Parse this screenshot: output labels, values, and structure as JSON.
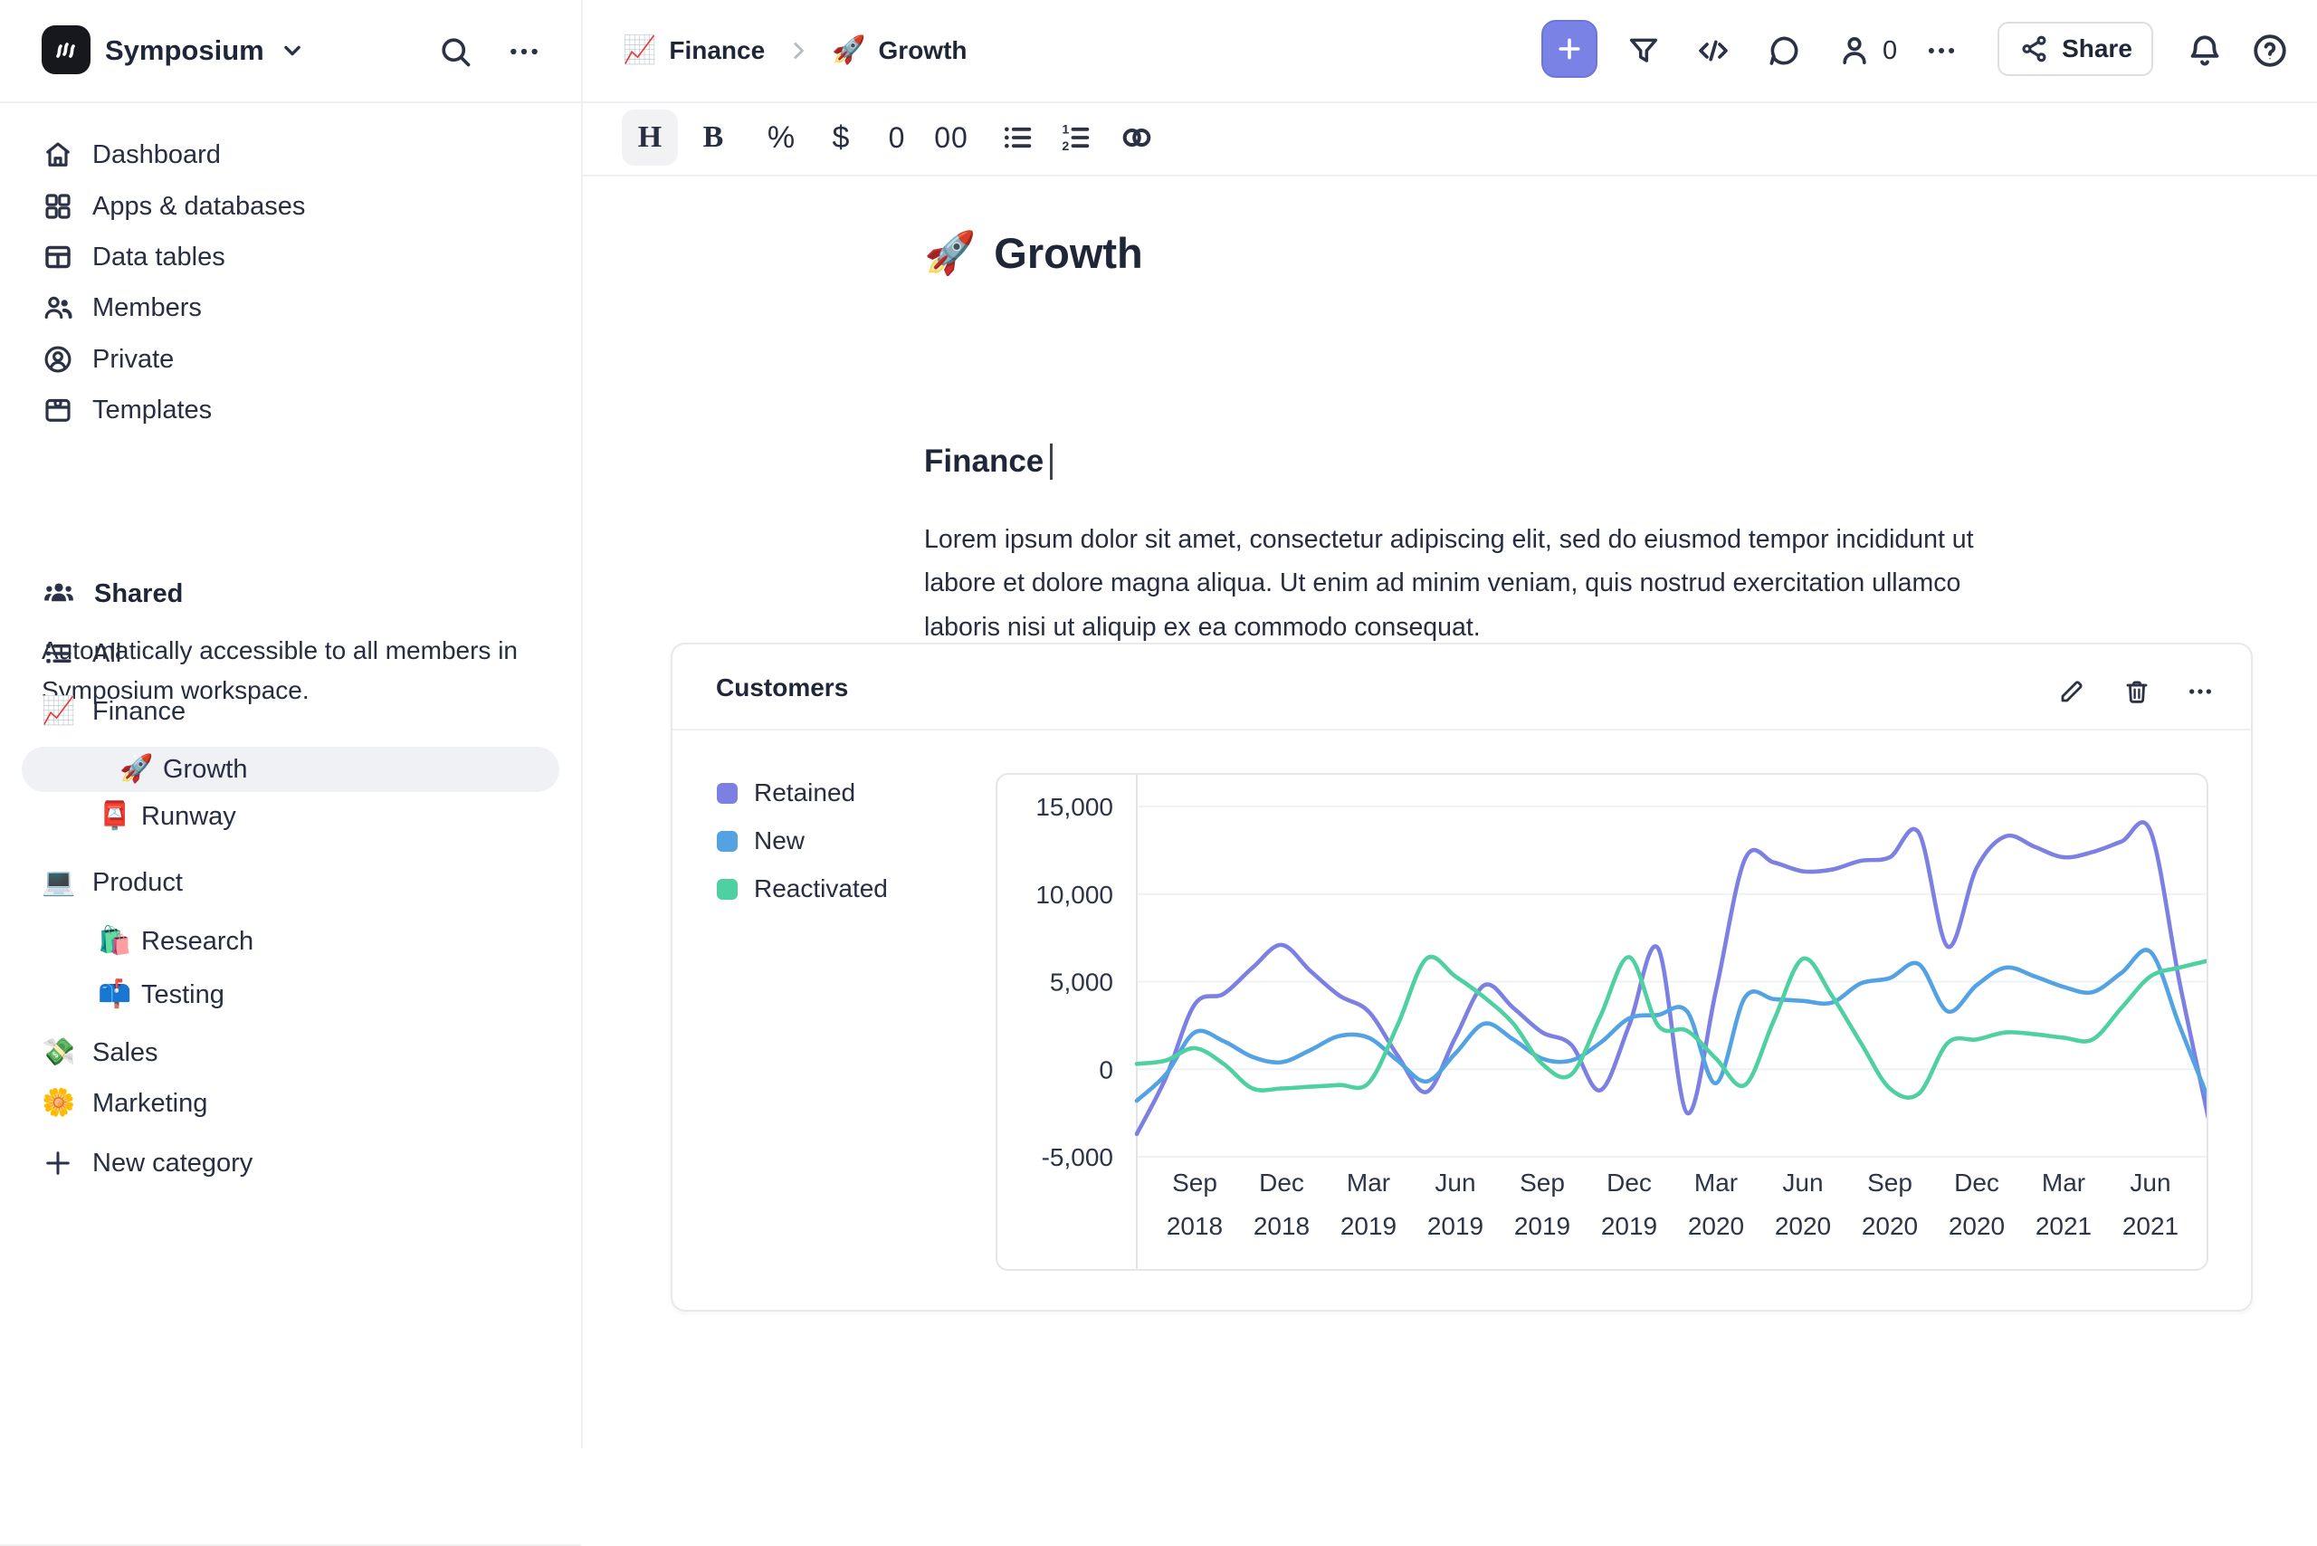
{
  "workspace": {
    "name": "Symposium"
  },
  "topbar": {
    "breadcrumb": [
      {
        "emoji": "📈",
        "label": "Finance"
      },
      {
        "emoji": "🚀",
        "label": "Growth"
      }
    ],
    "collaborator_count": "0",
    "share_label": "Share"
  },
  "format_toolbar": {
    "heading": "H",
    "bold": "B",
    "percent": "%",
    "currency": "$",
    "zero": "0",
    "double_zero": "00"
  },
  "sidebar": {
    "main_items": [
      {
        "icon": "home-icon",
        "label": "Dashboard"
      },
      {
        "icon": "grid-icon",
        "label": "Apps & databases"
      },
      {
        "icon": "table-icon",
        "label": "Data tables"
      },
      {
        "icon": "members-icon",
        "label": "Members"
      },
      {
        "icon": "private-icon",
        "label": "Private"
      },
      {
        "icon": "templates-icon",
        "label": "Templates"
      }
    ],
    "shared_section": {
      "title": "Shared",
      "description": "Automatically accessible to all members in Symposium workspace."
    },
    "items": [
      {
        "label": "All",
        "icon": "list-icon"
      },
      {
        "label": "Finance",
        "emoji": "📈"
      },
      {
        "label": "Growth",
        "emoji": "🚀",
        "selected": true
      },
      {
        "label": "Runway",
        "emoji": "📮"
      },
      {
        "label": "Product",
        "emoji": "💻"
      },
      {
        "label": "Research",
        "emoji": "🛍️"
      },
      {
        "label": "Testing",
        "emoji": "📫"
      },
      {
        "label": "Sales",
        "emoji": "💸"
      },
      {
        "label": "Marketing",
        "emoji": "🌼"
      }
    ],
    "new_category": "New category"
  },
  "document": {
    "title_emoji": "🚀",
    "title": "Growth",
    "heading": "Finance",
    "paragraph": "Lorem ipsum dolor sit amet, consectetur adipiscing elit, sed do eiusmod tempor incididunt ut labore et dolore magna aliqua. Ut enim ad minim veniam, quis nostrud exercitation ullamco laboris nisi ut aliquip ex ea commodo consequat."
  },
  "chart_card": {
    "title": "Customers"
  },
  "chart_data": {
    "type": "line",
    "title": "Customers",
    "x_start": "Jul 2018",
    "x_end": "Aug 2021",
    "x_frequency": "monthly",
    "x_tick_month_index": [
      2,
      5,
      8,
      11,
      14,
      17,
      20,
      23,
      26,
      29,
      32,
      35
    ],
    "x_tick_labels": [
      [
        "Sep",
        "2018"
      ],
      [
        "Dec",
        "2018"
      ],
      [
        "Mar",
        "2019"
      ],
      [
        "Jun",
        "2019"
      ],
      [
        "Sep",
        "2019"
      ],
      [
        "Dec",
        "2019"
      ],
      [
        "Mar",
        "2020"
      ],
      [
        "Jun",
        "2020"
      ],
      [
        "Sep",
        "2020"
      ],
      [
        "Dec",
        "2020"
      ],
      [
        "Mar",
        "2021"
      ],
      [
        "Jun",
        "2021"
      ]
    ],
    "ylim": [
      -5000,
      15000
    ],
    "y_ticks": [
      {
        "v": -5000,
        "label": "-5,000"
      },
      {
        "v": 0,
        "label": "0"
      },
      {
        "v": 5000,
        "label": "5,000"
      },
      {
        "v": 10000,
        "label": "10,000"
      },
      {
        "v": 15000,
        "label": "15,000"
      }
    ],
    "grid": "horizontal",
    "legend_position": "left",
    "series": [
      {
        "name": "Retained",
        "color": "#7b80e2",
        "values": [
          -3700,
          -500,
          3700,
          4300,
          5800,
          7100,
          5600,
          4200,
          3300,
          800,
          -1300,
          1800,
          4800,
          3500,
          2100,
          1400,
          -1200,
          2500,
          6900,
          -2500,
          4500,
          12000,
          11800,
          11300,
          11400,
          11900,
          12100,
          13500,
          7000,
          11500,
          13300,
          12700,
          12100,
          12400,
          13000,
          13600,
          5000,
          -2800
        ]
      },
      {
        "name": "New",
        "color": "#53a2e4",
        "values": [
          -1800,
          -300,
          2100,
          1600,
          700,
          400,
          1100,
          1900,
          1800,
          500,
          -700,
          900,
          2600,
          1700,
          600,
          500,
          1500,
          2900,
          3100,
          3300,
          -800,
          4100,
          4000,
          3900,
          3800,
          4900,
          5200,
          6000,
          3300,
          4800,
          5800,
          5300,
          4700,
          4400,
          5500,
          6700,
          2500,
          -1700
        ]
      },
      {
        "name": "Reactivated",
        "color": "#4ed0a1",
        "values": [
          300,
          500,
          1200,
          300,
          -1100,
          -1100,
          -1000,
          -900,
          -800,
          2500,
          6300,
          5300,
          4100,
          2600,
          300,
          -300,
          3000,
          6400,
          2500,
          2200,
          600,
          -900,
          2800,
          6300,
          4200,
          1500,
          -1100,
          -1400,
          1500,
          1700,
          2100,
          2000,
          1800,
          1700,
          3500,
          5300,
          5800,
          6200
        ]
      }
    ]
  }
}
